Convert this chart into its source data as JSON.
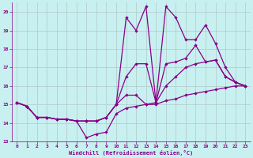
{
  "xlabel": "Windchill (Refroidissement éolien,°C)",
  "xlim": [
    -0.5,
    23.5
  ],
  "ylim": [
    13,
    20.5
  ],
  "xticks": [
    0,
    1,
    2,
    3,
    4,
    5,
    6,
    7,
    8,
    9,
    10,
    11,
    12,
    13,
    14,
    15,
    16,
    17,
    18,
    19,
    20,
    21,
    22,
    23
  ],
  "yticks": [
    13,
    14,
    15,
    16,
    17,
    18,
    19,
    20
  ],
  "bg_color": "#c8f0f0",
  "line_color": "#880088",
  "grid_color": "#b0c8c8",
  "line1": [
    15.1,
    14.9,
    14.3,
    14.3,
    14.2,
    14.2,
    14.1,
    13.2,
    13.4,
    13.5,
    14.5,
    14.8,
    14.9,
    15.0,
    15.0,
    15.2,
    15.3,
    15.5,
    15.6,
    15.7,
    15.8,
    15.9,
    16.0,
    16.0
  ],
  "line2": [
    15.1,
    14.9,
    14.3,
    14.3,
    14.2,
    14.2,
    14.1,
    14.1,
    14.1,
    14.3,
    15.0,
    15.5,
    15.5,
    15.0,
    15.1,
    16.0,
    16.5,
    17.0,
    17.2,
    17.3,
    17.4,
    16.5,
    16.2,
    16.0
  ],
  "line3": [
    15.1,
    14.9,
    14.3,
    14.3,
    14.2,
    14.2,
    14.1,
    14.1,
    14.1,
    14.3,
    15.0,
    16.5,
    17.2,
    17.2,
    15.1,
    17.2,
    17.3,
    17.5,
    18.2,
    17.3,
    17.4,
    16.5,
    16.2,
    16.0
  ],
  "line4": [
    15.1,
    14.9,
    14.3,
    14.3,
    14.2,
    14.2,
    14.1,
    14.1,
    14.1,
    14.3,
    15.0,
    19.7,
    19.0,
    20.3,
    15.1,
    20.3,
    19.7,
    18.5,
    18.5,
    19.3,
    18.3,
    17.0,
    16.2,
    16.0
  ]
}
